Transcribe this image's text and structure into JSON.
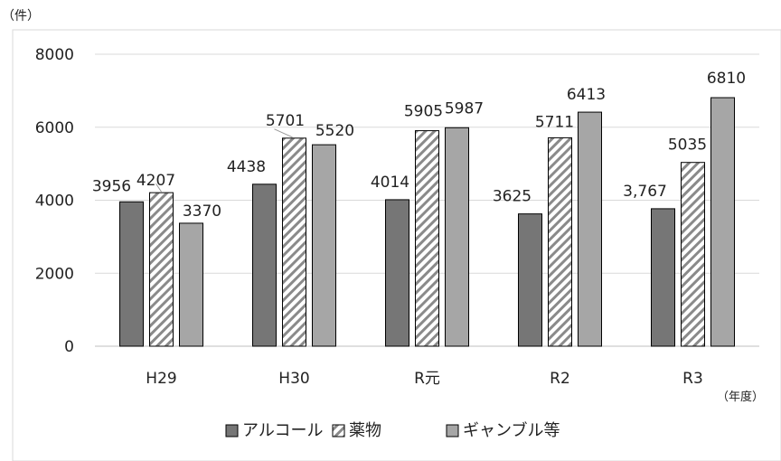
{
  "chart_data": {
    "type": "bar",
    "unit_label": "（件）",
    "x_unit_label": "（年度）",
    "categories": [
      "H29",
      "H30",
      "R元",
      "R2",
      "R3"
    ],
    "series": [
      {
        "name": "アルコール",
        "values": [
          3956,
          4438,
          4014,
          3625,
          3767
        ],
        "labels": [
          "3956",
          "4438",
          "4014",
          "3625",
          "3,767"
        ],
        "color": "#767676",
        "pattern": "solid"
      },
      {
        "name": "薬物",
        "values": [
          4207,
          5701,
          5905,
          5711,
          5035
        ],
        "labels": [
          "4207",
          "5701",
          "5905",
          "5711",
          "5035"
        ],
        "color": "#ffffff",
        "pattern": "hatch"
      },
      {
        "name": "ギャンブル等",
        "values": [
          3370,
          5520,
          5987,
          6413,
          6810
        ],
        "labels": [
          "3370",
          "5520",
          "5987",
          "6413",
          "6810"
        ],
        "color": "#a6a6a6",
        "pattern": "solid"
      }
    ],
    "ylim": [
      0,
      8000
    ],
    "yticks": [
      "0",
      "2000",
      "4000",
      "6000",
      "8000"
    ],
    "grid": true,
    "legend": "bottom"
  }
}
